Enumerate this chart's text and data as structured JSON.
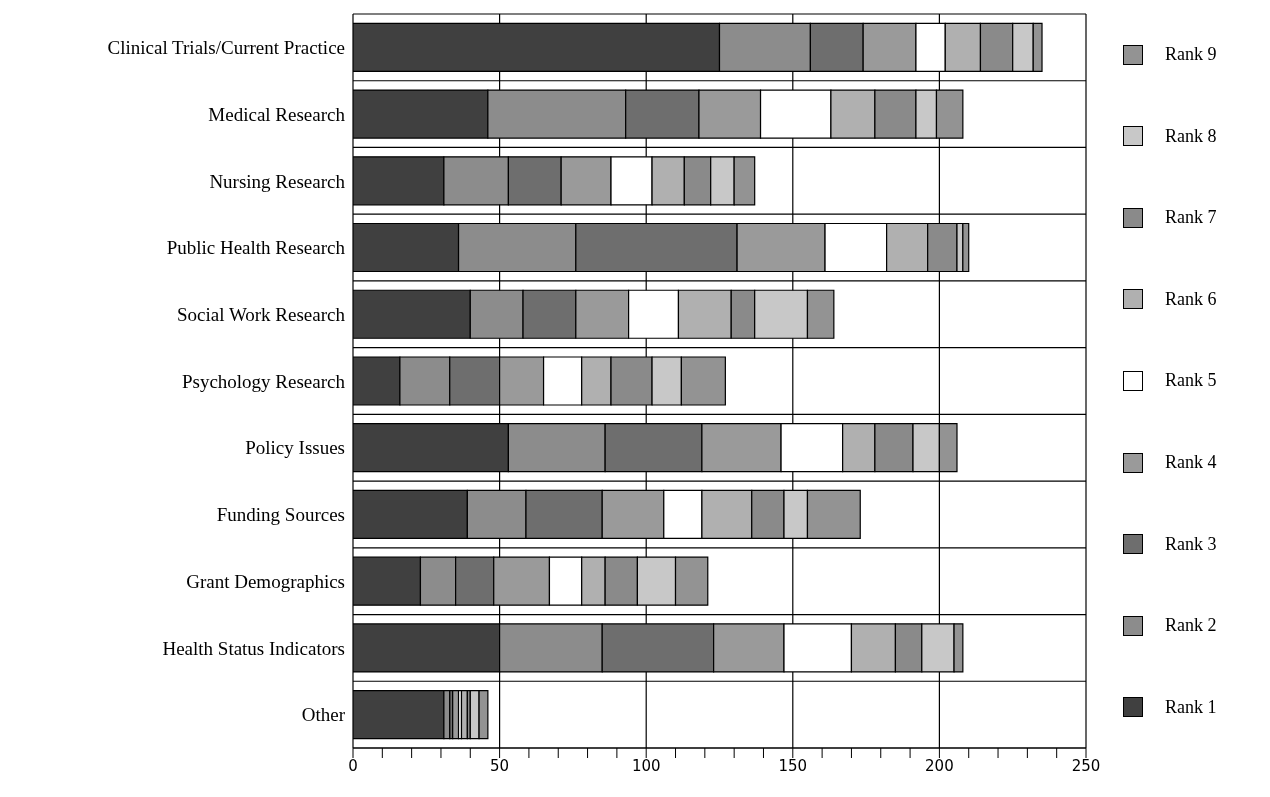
{
  "chart_data": {
    "type": "bar",
    "orientation": "horizontal",
    "stacked": true,
    "categories": [
      "Clinical Trials/Current Practice",
      "Medical Research",
      "Nursing Research",
      "Public Health Research",
      "Social Work Research",
      "Psychology Research",
      "Policy Issues",
      "Funding Sources",
      "Grant Demographics",
      "Health Status Indicators",
      "Other"
    ],
    "series": [
      {
        "name": "Rank 1",
        "color": "#404040",
        "values": [
          125,
          46,
          31,
          36,
          40,
          16,
          53,
          39,
          23,
          50,
          31
        ]
      },
      {
        "name": "Rank 2",
        "color": "#8c8c8c",
        "values": [
          31,
          47,
          22,
          40,
          18,
          17,
          33,
          20,
          12,
          35,
          2
        ]
      },
      {
        "name": "Rank 3",
        "color": "#6e6e6e",
        "values": [
          18,
          25,
          18,
          55,
          18,
          17,
          33,
          26,
          13,
          38,
          1
        ]
      },
      {
        "name": "Rank 4",
        "color": "#9a9a9a",
        "values": [
          18,
          21,
          17,
          30,
          18,
          15,
          27,
          21,
          19,
          24,
          2
        ]
      },
      {
        "name": "Rank 5",
        "color": "#ffffff",
        "values": [
          10,
          24,
          14,
          21,
          17,
          13,
          21,
          13,
          11,
          23,
          1
        ]
      },
      {
        "name": "Rank 6",
        "color": "#b0b0b0",
        "values": [
          12,
          15,
          11,
          14,
          18,
          10,
          11,
          17,
          8,
          15,
          2
        ]
      },
      {
        "name": "Rank 7",
        "color": "#8a8a8a",
        "values": [
          11,
          14,
          9,
          10,
          8,
          14,
          13,
          11,
          11,
          9,
          1
        ]
      },
      {
        "name": "Rank 8",
        "color": "#c8c8c8",
        "values": [
          7,
          7,
          8,
          2,
          18,
          10,
          9,
          8,
          13,
          11,
          3
        ]
      },
      {
        "name": "Rank 9",
        "color": "#939393",
        "values": [
          3,
          9,
          7,
          2,
          9,
          15,
          6,
          18,
          11,
          3,
          3
        ]
      }
    ],
    "xlim": [
      0,
      250
    ],
    "xticks": [
      0,
      {
        "value": 10,
        "label": null
      },
      {
        "value": 20,
        "label": null
      },
      {
        "value": 30,
        "label": null
      },
      {
        "value": 40,
        "label": null
      },
      50,
      {
        "value": 60,
        "label": null
      },
      {
        "value": 70,
        "label": null
      },
      {
        "value": 80,
        "label": null
      },
      {
        "value": 90,
        "label": null
      },
      100,
      {
        "value": 110,
        "label": null
      },
      {
        "value": 120,
        "label": null
      },
      {
        "value": 130,
        "label": null
      },
      {
        "value": 140,
        "label": null
      },
      150,
      {
        "value": 160,
        "label": null
      },
      {
        "value": 170,
        "label": null
      },
      {
        "value": 180,
        "label": null
      },
      {
        "value": 190,
        "label": null
      },
      200,
      {
        "value": 210,
        "label": null
      },
      {
        "value": 220,
        "label": null
      },
      {
        "value": 230,
        "label": null
      },
      {
        "value": 240,
        "label": null
      },
      250
    ],
    "grid": true,
    "legend": "right"
  }
}
